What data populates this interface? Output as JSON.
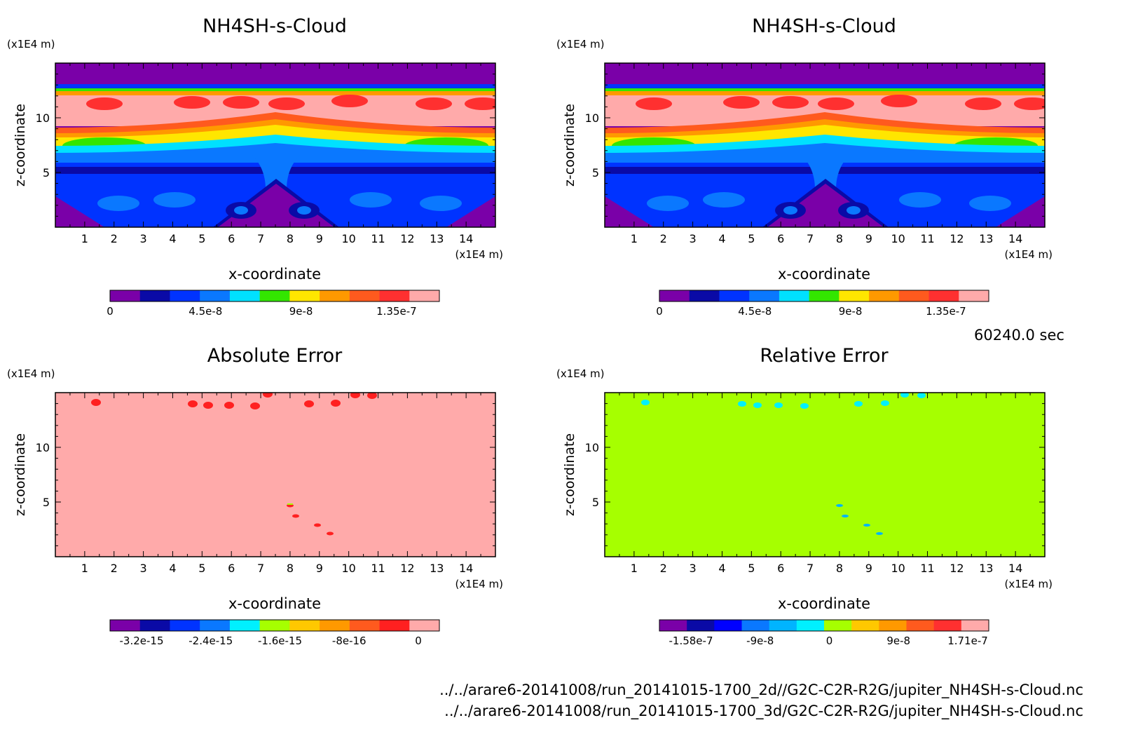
{
  "figure": {
    "time_label": "60240.0 sec",
    "files": [
      "../../arare6-20141008/run_20141015-1700_2d//G2C-C2R-R2G/jupiter_NH4SH-s-Cloud.nc",
      "../../arare6-20141008/run_20141015-1700_3d/G2C-C2R-R2G/jupiter_NH4SH-s-Cloud.nc"
    ]
  },
  "chart_data": [
    {
      "type": "heatmap",
      "title": "NH4SH-s-Cloud",
      "xlabel": "x-coordinate",
      "ylabel": "z-coordinate",
      "x_unit": "(x1E4 m)",
      "y_unit": "(x1E4 m)",
      "xlim": [
        0,
        15
      ],
      "ylim": [
        0,
        15
      ],
      "x_ticks": [
        "1",
        "2",
        "3",
        "4",
        "5",
        "6",
        "7",
        "8",
        "9",
        "10",
        "11",
        "12",
        "13",
        "14"
      ],
      "y_ticks": [
        "5",
        "10"
      ],
      "colorbar": {
        "colors": [
          "#7a00a8",
          "#0a0aa6",
          "#0033ff",
          "#0a78ff",
          "#00e1ff",
          "#33e600",
          "#ffe600",
          "#ff9900",
          "#ff5a1e",
          "#ff3030",
          "#ffaaaa"
        ],
        "labels": [
          "0",
          "4.5e-8",
          "9e-8",
          "1.35e-7"
        ]
      },
      "field": "cloud"
    },
    {
      "type": "heatmap",
      "title": "NH4SH-s-Cloud",
      "xlabel": "x-coordinate",
      "ylabel": "z-coordinate",
      "x_unit": "(x1E4 m)",
      "y_unit": "(x1E4 m)",
      "xlim": [
        0,
        15
      ],
      "ylim": [
        0,
        15
      ],
      "x_ticks": [
        "1",
        "2",
        "3",
        "4",
        "5",
        "6",
        "7",
        "8",
        "9",
        "10",
        "11",
        "12",
        "13",
        "14"
      ],
      "y_ticks": [
        "5",
        "10"
      ],
      "colorbar": {
        "colors": [
          "#7a00a8",
          "#0a0aa6",
          "#0033ff",
          "#0a78ff",
          "#00e1ff",
          "#33e600",
          "#ffe600",
          "#ff9900",
          "#ff5a1e",
          "#ff3030",
          "#ffaaaa"
        ],
        "labels": [
          "0",
          "4.5e-8",
          "9e-8",
          "1.35e-7"
        ]
      },
      "field": "cloud"
    },
    {
      "type": "heatmap",
      "title": "Absolute Error",
      "xlabel": "x-coordinate",
      "ylabel": "z-coordinate",
      "x_unit": "(x1E4 m)",
      "y_unit": "(x1E4 m)",
      "xlim": [
        0,
        15
      ],
      "ylim": [
        0,
        15
      ],
      "x_ticks": [
        "1",
        "2",
        "3",
        "4",
        "5",
        "6",
        "7",
        "8",
        "9",
        "10",
        "11",
        "12",
        "13",
        "14"
      ],
      "y_ticks": [
        "5",
        "10"
      ],
      "colorbar": {
        "colors": [
          "#7a00a8",
          "#0a0aa6",
          "#0033ff",
          "#0a78ff",
          "#00f0ff",
          "#a6ff00",
          "#ffc800",
          "#ff9900",
          "#ff5a1e",
          "#ff2020",
          "#ffaaaa"
        ],
        "labels": [
          "-3.2e-15",
          "-2.4e-15",
          "-1.6e-15",
          "-8e-16",
          "0"
        ]
      },
      "background_color": "#ffaaaa",
      "field": "abs_error"
    },
    {
      "type": "heatmap",
      "title": "Relative Error",
      "xlabel": "x-coordinate",
      "ylabel": "z-coordinate",
      "x_unit": "(x1E4 m)",
      "y_unit": "(x1E4 m)",
      "xlim": [
        0,
        15
      ],
      "ylim": [
        0,
        15
      ],
      "x_ticks": [
        "1",
        "2",
        "3",
        "4",
        "5",
        "6",
        "7",
        "8",
        "9",
        "10",
        "11",
        "12",
        "13",
        "14"
      ],
      "y_ticks": [
        "5",
        "10"
      ],
      "colorbar": {
        "colors": [
          "#7a00a8",
          "#0a0aa6",
          "#0000ff",
          "#0a78ff",
          "#00b4ff",
          "#00f0ff",
          "#a6ff00",
          "#ffc800",
          "#ff9900",
          "#ff5a1e",
          "#ff3030",
          "#ffaaaa"
        ],
        "labels": [
          "-1.58e-7",
          "-9e-8",
          "0",
          "9e-8",
          "1.71e-7"
        ]
      },
      "background_color": "#a6ff00",
      "field": "rel_error"
    }
  ]
}
